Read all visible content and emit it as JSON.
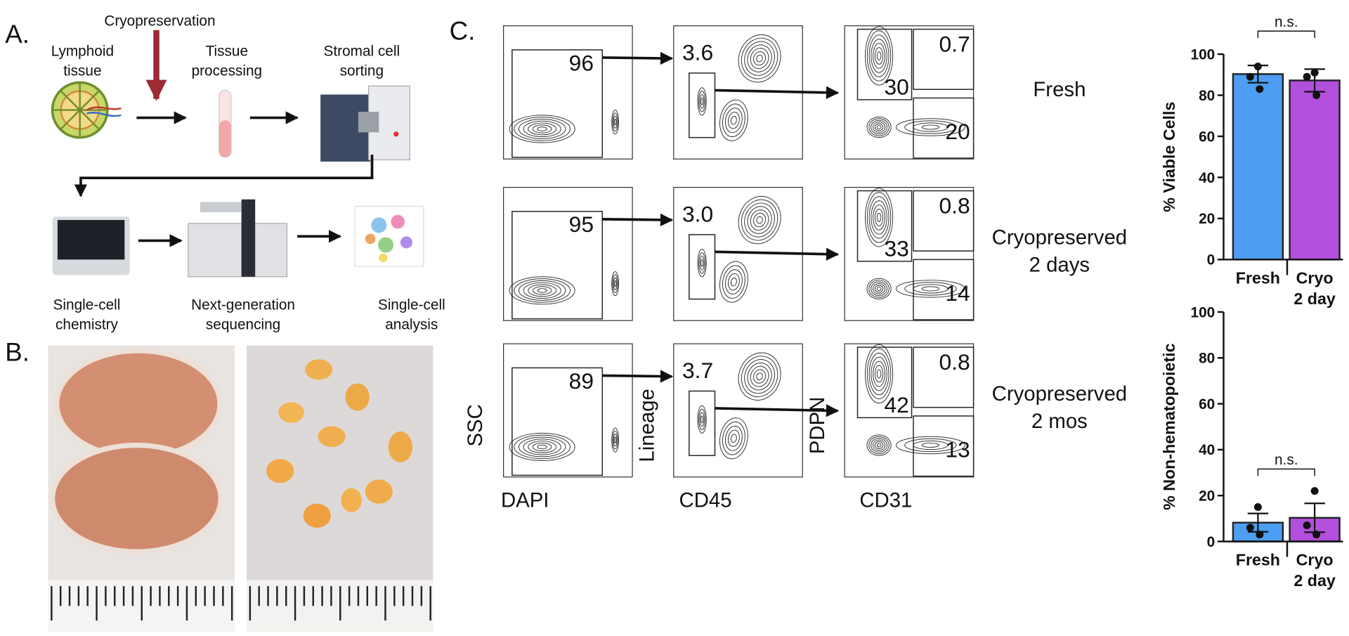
{
  "panel_a": {
    "label": "A.",
    "cryo": "Cryopreservation",
    "steps": [
      [
        "Lymphoid",
        "tissue"
      ],
      [
        "Tissue",
        "processing"
      ],
      [
        "Stromal cell",
        "sorting"
      ],
      [
        "Single-cell",
        "chemistry"
      ],
      [
        "Next-generation",
        "sequencing"
      ],
      [
        "Single-cell",
        "analysis"
      ]
    ]
  },
  "panel_b": {
    "label": "B."
  },
  "panel_c": {
    "label": "C.",
    "x_labels": [
      "DAPI",
      "CD45",
      "CD31"
    ],
    "y_labels": [
      "SSC",
      "Lineage",
      "PDPN"
    ],
    "rows": [
      {
        "condition": [
          "Fresh"
        ],
        "gates": [
          "96",
          "3.6",
          "0.7",
          "30",
          "20"
        ]
      },
      {
        "condition": [
          "Cryopreserved",
          "2 days"
        ],
        "gates": [
          "95",
          "3.0",
          "0.8",
          "33",
          "14"
        ]
      },
      {
        "condition": [
          "Cryopreserved",
          "2 mos"
        ],
        "gates": [
          "89",
          "3.7",
          "0.8",
          "42",
          "13"
        ]
      }
    ]
  },
  "chart_data": [
    {
      "type": "bar",
      "ylabel": "% Viable  Cells",
      "categories": [
        [
          "Fresh"
        ],
        [
          "Cryo",
          "2 day"
        ]
      ],
      "values": [
        90.3,
        87.2
      ],
      "errors": [
        4.2,
        5.5
      ],
      "points": [
        [
          94,
          89,
          83
        ],
        [
          91,
          89,
          80
        ]
      ],
      "colors": [
        "#4d9ef2",
        "#b24fdc"
      ],
      "ylim": [
        0,
        100
      ],
      "yticks": [
        0,
        20,
        40,
        60,
        80,
        100
      ],
      "annotation": "n.s."
    },
    {
      "type": "bar",
      "ylabel": "% Non-hematopoietic",
      "categories": [
        [
          "Fresh"
        ],
        [
          "Cryo",
          "2 day"
        ]
      ],
      "values": [
        8.2,
        10.3
      ],
      "errors": [
        4,
        6.3
      ],
      "points": [
        [
          15,
          6,
          3
        ],
        [
          22,
          7,
          3
        ]
      ],
      "colors": [
        "#4d9ef2",
        "#b24fdc"
      ],
      "ylim": [
        0,
        100
      ],
      "yticks": [
        0,
        20,
        40,
        60,
        80,
        100
      ],
      "annotation": "n.s."
    }
  ]
}
